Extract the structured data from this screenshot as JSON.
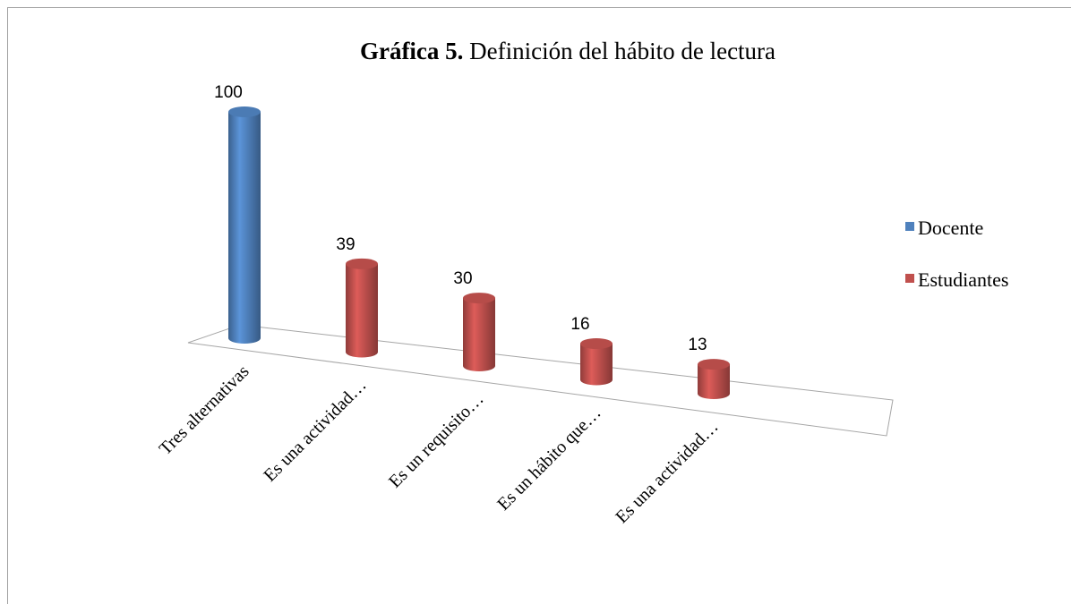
{
  "chart_data": {
    "type": "bar3d",
    "title_prefix": "Gráfica 5.",
    "title": "Definición  del hábito de lectura",
    "categories": [
      "Tres alternativas",
      "Es una actividad…",
      "Es un requisito…",
      "Es un hábito que…",
      "Es una actividad…"
    ],
    "series": [
      {
        "name": "Docente",
        "color": "#4f81bd",
        "values": [
          100,
          null,
          null,
          null,
          null
        ]
      },
      {
        "name": "Estudiantes",
        "color": "#c0504d",
        "values": [
          null,
          39,
          30,
          16,
          13
        ]
      }
    ],
    "legend": "right"
  }
}
